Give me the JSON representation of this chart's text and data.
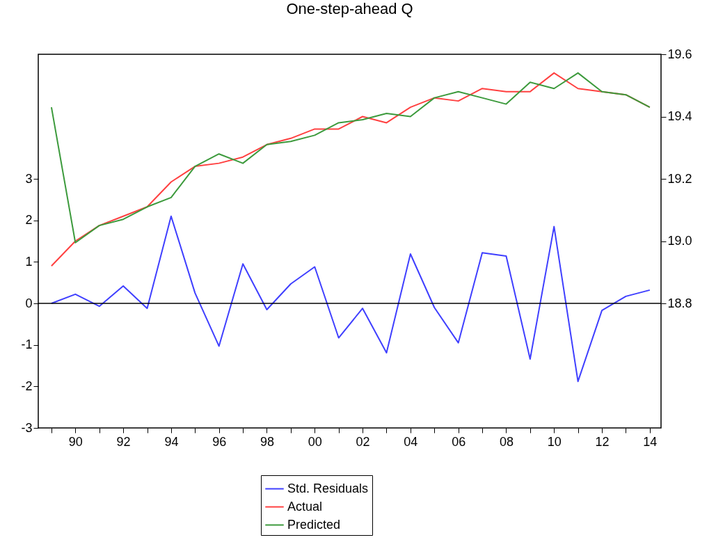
{
  "chart_data": {
    "type": "line",
    "title": "One-step-ahead Q",
    "x": [
      1989,
      1990,
      1991,
      1992,
      1993,
      1994,
      1995,
      1996,
      1997,
      1998,
      1999,
      2000,
      2001,
      2002,
      2003,
      2004,
      2005,
      2006,
      2007,
      2008,
      2009,
      2010,
      2011,
      2012,
      2013,
      2014
    ],
    "series": [
      {
        "name": "Std. Residuals",
        "color": "#3f3fff",
        "values": [
          0.0,
          0.22,
          -0.07,
          0.42,
          -0.12,
          2.1,
          0.25,
          -1.03,
          0.95,
          -0.15,
          0.47,
          0.88,
          -0.83,
          -0.12,
          -1.19,
          1.19,
          -0.1,
          -0.95,
          1.22,
          1.14,
          -1.34,
          1.85,
          -1.88,
          -0.17,
          0.17,
          0.32
        ]
      },
      {
        "name": "Actual",
        "color": "#ff4040",
        "axis": "y2",
        "values": [
          18.92,
          19.0,
          19.05,
          19.08,
          19.11,
          19.19,
          19.24,
          19.25,
          19.27,
          19.31,
          19.33,
          19.36,
          19.36,
          19.4,
          19.38,
          19.43,
          19.46,
          19.45,
          19.49,
          19.48,
          19.48,
          19.54,
          19.49,
          19.48,
          19.47,
          19.43
        ]
      },
      {
        "name": "Predicted",
        "color": "#3c9a3c",
        "axis": "y2",
        "values": [
          19.43,
          18.995,
          19.05,
          19.07,
          19.11,
          19.14,
          19.24,
          19.28,
          19.25,
          19.31,
          19.32,
          19.34,
          19.38,
          19.39,
          19.41,
          19.4,
          19.46,
          19.48,
          19.46,
          19.44,
          19.51,
          19.49,
          19.54,
          19.48,
          19.47,
          19.43
        ]
      }
    ],
    "xlim": [
      1988.45,
      2014.47
    ],
    "xticks": [
      {
        "value": 1989,
        "label": null
      },
      {
        "value": 1990,
        "label": "90"
      },
      {
        "value": 1991,
        "label": null
      },
      {
        "value": 1992,
        "label": "92"
      },
      {
        "value": 1993,
        "label": null
      },
      {
        "value": 1994,
        "label": "94"
      },
      {
        "value": 1995,
        "label": null
      },
      {
        "value": 1996,
        "label": "96"
      },
      {
        "value": 1997,
        "label": null
      },
      {
        "value": 1998,
        "label": "98"
      },
      {
        "value": 1999,
        "label": null
      },
      {
        "value": 2000,
        "label": "00"
      },
      {
        "value": 2001,
        "label": null
      },
      {
        "value": 2002,
        "label": "02"
      },
      {
        "value": 2003,
        "label": null
      },
      {
        "value": 2004,
        "label": "04"
      },
      {
        "value": 2005,
        "label": null
      },
      {
        "value": 2006,
        "label": "06"
      },
      {
        "value": 2007,
        "label": null
      },
      {
        "value": 2008,
        "label": "08"
      },
      {
        "value": 2009,
        "label": null
      },
      {
        "value": 2010,
        "label": "10"
      },
      {
        "value": 2011,
        "label": null
      },
      {
        "value": 2012,
        "label": "12"
      },
      {
        "value": 2013,
        "label": null
      },
      {
        "value": 2014,
        "label": "14"
      }
    ],
    "ylim": [
      -3,
      6
    ],
    "yticks": [
      -3,
      -2,
      -1,
      0,
      1,
      2,
      3
    ],
    "y2lim": [
      18.4,
      19.6
    ],
    "y2ticks": [
      {
        "value": 18.8,
        "label": "18.8"
      },
      {
        "value": 19.0,
        "label": "19.0"
      },
      {
        "value": 19.2,
        "label": "19.2"
      },
      {
        "value": 19.4,
        "label": "19.4"
      },
      {
        "value": 19.6,
        "label": "19.6"
      }
    ],
    "ref_lines": [
      {
        "axis": "y",
        "value": 0,
        "color": "#000000"
      }
    ],
    "legend": "bottom",
    "grid": false
  }
}
